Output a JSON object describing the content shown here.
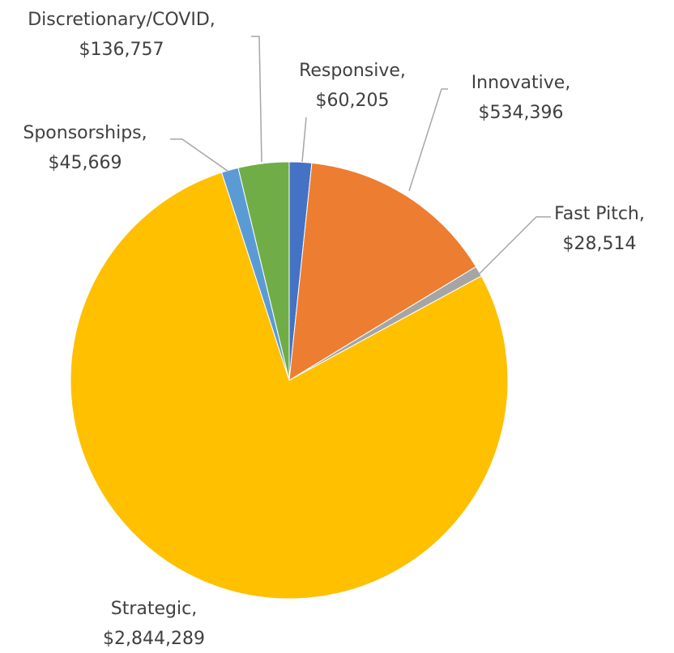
{
  "chart_data": {
    "type": "pie",
    "categories": [
      "Responsive,",
      "Innovative,",
      "Fast Pitch,",
      "Strategic,",
      "Sponsorships,",
      "Discretionary/COVID,"
    ],
    "values": [
      60205,
      534396,
      28514,
      2844289,
      45669,
      136757
    ],
    "value_labels": [
      "$60,205",
      "$534,396",
      "$28,514",
      "$2,844,289",
      "$45,669",
      "$136,757"
    ],
    "colors": [
      "#4472c4",
      "#ed7d31",
      "#a5a5a5",
      "#ffc000",
      "#5b9bd5",
      "#70ad47"
    ]
  }
}
